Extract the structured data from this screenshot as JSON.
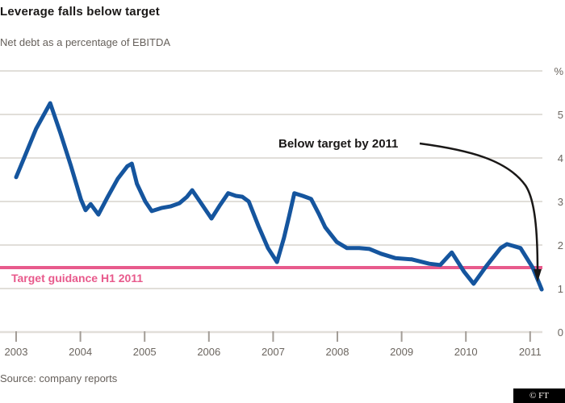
{
  "header": {
    "title": "Leverage falls below target",
    "subtitle": "Net debt as a percentage of EBITDA"
  },
  "chart_data": {
    "type": "line",
    "title": "Leverage falls below target",
    "subtitle": "Net debt as a percentage of EBITDA",
    "unit": "%",
    "xlim": [
      2003,
      2011.2
    ],
    "ylim": [
      0,
      6
    ],
    "grid": "horizontal",
    "legend_position": "none",
    "x_tick_labels": [
      "2003",
      "2004",
      "2005",
      "2006",
      "2007",
      "2008",
      "2009",
      "2010",
      "2011"
    ],
    "y_tick_labels": [
      "%",
      "5",
      "4",
      "3",
      "2",
      "1",
      "0"
    ],
    "colors": {
      "line": "#15559e",
      "target": "#e85a8c",
      "grid": "#e1ded9",
      "tick": "#a39d97",
      "text_gray": "#66605b",
      "text_black": "#1a1817"
    },
    "series": [
      {
        "name": "Net debt to EBITDA",
        "color": "#15559e",
        "points": [
          [
            2003.0,
            3.56
          ],
          [
            2003.13,
            4.02
          ],
          [
            2003.31,
            4.67
          ],
          [
            2003.53,
            5.26
          ],
          [
            2003.69,
            4.57
          ],
          [
            2003.85,
            3.83
          ],
          [
            2004.01,
            3.04
          ],
          [
            2004.08,
            2.8
          ],
          [
            2004.16,
            2.94
          ],
          [
            2004.28,
            2.7
          ],
          [
            2004.42,
            3.09
          ],
          [
            2004.58,
            3.52
          ],
          [
            2004.73,
            3.81
          ],
          [
            2004.8,
            3.87
          ],
          [
            2004.88,
            3.41
          ],
          [
            2005.01,
            3.0
          ],
          [
            2005.11,
            2.78
          ],
          [
            2005.26,
            2.85
          ],
          [
            2005.41,
            2.89
          ],
          [
            2005.54,
            2.96
          ],
          [
            2005.66,
            3.11
          ],
          [
            2005.74,
            3.26
          ],
          [
            2005.86,
            3.0
          ],
          [
            2006.04,
            2.61
          ],
          [
            2006.17,
            2.91
          ],
          [
            2006.3,
            3.19
          ],
          [
            2006.42,
            3.13
          ],
          [
            2006.52,
            3.11
          ],
          [
            2006.62,
            3.0
          ],
          [
            2006.77,
            2.44
          ],
          [
            2006.92,
            1.93
          ],
          [
            2007.06,
            1.61
          ],
          [
            2007.17,
            2.17
          ],
          [
            2007.25,
            2.67
          ],
          [
            2007.33,
            3.19
          ],
          [
            2007.46,
            3.13
          ],
          [
            2007.59,
            3.06
          ],
          [
            2007.71,
            2.72
          ],
          [
            2007.81,
            2.41
          ],
          [
            2007.99,
            2.07
          ],
          [
            2008.15,
            1.93
          ],
          [
            2008.34,
            1.93
          ],
          [
            2008.5,
            1.91
          ],
          [
            2008.68,
            1.8
          ],
          [
            2008.9,
            1.7
          ],
          [
            2009.16,
            1.67
          ],
          [
            2009.43,
            1.57
          ],
          [
            2009.6,
            1.54
          ],
          [
            2009.78,
            1.83
          ],
          [
            2009.97,
            1.39
          ],
          [
            2010.12,
            1.11
          ],
          [
            2010.32,
            1.52
          ],
          [
            2010.54,
            1.93
          ],
          [
            2010.64,
            2.02
          ],
          [
            2010.85,
            1.93
          ],
          [
            2011.04,
            1.48
          ],
          [
            2011.18,
            0.98
          ]
        ]
      }
    ],
    "target_line": {
      "label": "Target guidance H1 2011",
      "value": 1.5,
      "color": "#e85a8c"
    },
    "annotation": {
      "text": "Below target by 2011",
      "arrow_points_to": [
        2011.18,
        0.98
      ]
    }
  },
  "footer": {
    "source": "Source: company reports",
    "logo": "© FT"
  }
}
